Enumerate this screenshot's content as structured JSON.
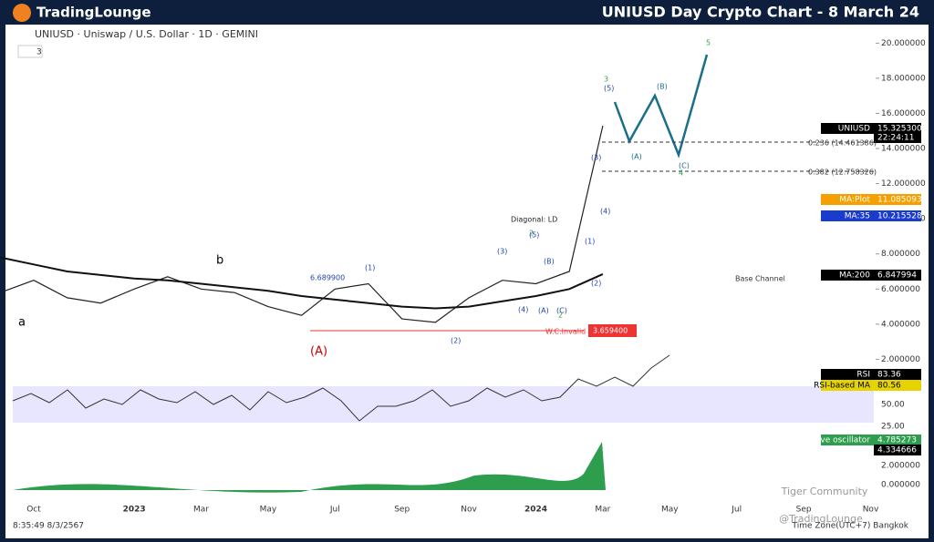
{
  "chart_data": {
    "type": "line",
    "title": "UNIUSD Day Crypto Chart - 8 March 24",
    "brand": "TradingLounge",
    "symbol": "UNIUSD · Uniswap / U.S. Dollar · 1D · GEMINI",
    "indicator_count": "3",
    "categories": [
      null,
      "Oct",
      null,
      null,
      "2023",
      null,
      "Mar",
      null,
      "May",
      null,
      "Jul",
      null,
      "Sep",
      null,
      "Nov",
      null,
      "2024",
      null,
      "Mar",
      null,
      "May",
      null,
      "Jul",
      null,
      "Sep",
      null,
      "Nov"
    ],
    "series": [
      {
        "name": "UNIUSD",
        "color": "#222222",
        "values": [
          5.8,
          6.5,
          5.5,
          5.2,
          6.0,
          6.7,
          6.0,
          5.8,
          5.0,
          4.5,
          6.0,
          6.3,
          4.3,
          4.1,
          5.5,
          6.5,
          6.3,
          7.0,
          15.3,
          null,
          null,
          null,
          null,
          null,
          null,
          null,
          null
        ]
      },
      {
        "name": "MA:200",
        "color": "#111111",
        "values": [
          7.8,
          7.4,
          7.0,
          6.8,
          6.6,
          6.5,
          6.3,
          6.1,
          5.9,
          5.6,
          5.4,
          5.2,
          5.0,
          4.9,
          5.0,
          5.3,
          5.6,
          6.0,
          6.85,
          null,
          null,
          null,
          null,
          null,
          null,
          null,
          null
        ]
      }
    ],
    "ylim": [
      0,
      20.9
    ],
    "yticks": [
      {
        "value": 2,
        "label": "2.000000"
      },
      {
        "value": 4,
        "label": "4.000000"
      },
      {
        "value": 6,
        "label": "6.000000"
      },
      {
        "value": 8,
        "label": "8.000000"
      },
      {
        "value": 10,
        "label": "10.000000"
      },
      {
        "value": 12,
        "label": "12.000000"
      },
      {
        "value": 14,
        "label": "14.000000"
      },
      {
        "value": 16,
        "label": "16.000000"
      },
      {
        "value": 18,
        "label": "18.000000"
      },
      {
        "value": 20,
        "label": "20.000000"
      }
    ],
    "lower_ticks": [
      "50.00",
      "25.00",
      "2.000000",
      "0.000000"
    ],
    "price_labels": [
      [
        "UNIUSD",
        "15.325300"
      ],
      [
        "MA:Plot",
        "11.085093"
      ],
      [
        "MA:35",
        "10.215528"
      ],
      [
        "MA:200",
        "6.847994"
      ],
      [
        "RSI",
        "83.36"
      ],
      [
        "RSI-based MA",
        "80.56"
      ],
      [
        "Wave oscillator",
        "4.785273"
      ]
    ],
    "extra_labels": [
      "22:24:11",
      "4.334666"
    ],
    "annotations": [
      "0.236 (14.461386)",
      "0.382 (12.758326)",
      "6.689900",
      "W.C.Invalid",
      "3.659400",
      "Diagonal: LD",
      "Base Channel",
      "a",
      "b",
      "(A)",
      "(1)",
      "(2)",
      "(3)",
      "(4)",
      "(5)",
      "(1)",
      "(2)",
      "(3)",
      "(4)",
      "(5)",
      "(A)",
      "(B)",
      "(C)",
      "(A)",
      "(B)",
      "(C)",
      "3",
      "5",
      "4",
      "2",
      "2"
    ],
    "footer": [
      "8:35:49 8/3/2567",
      "Time Zone(UTC+7) Bangkok",
      "Tiger Community",
      "@TradingLounge"
    ]
  }
}
